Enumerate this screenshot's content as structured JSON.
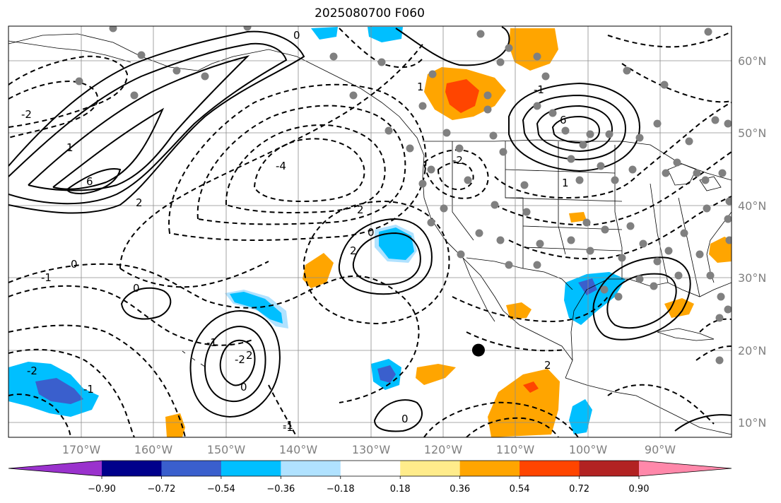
{
  "title": "2025080700 F060",
  "map": {
    "lon_range": [
      -180,
      -80
    ],
    "lat_range": [
      8,
      65
    ],
    "gridlines": true,
    "lat_labels": [
      "10°N",
      "20°N",
      "30°N",
      "40°N",
      "50°N",
      "60°N"
    ],
    "lon_labels": [
      "170°W",
      "160°W",
      "150°W",
      "140°W",
      "130°W",
      "120°W",
      "110°W",
      "100°W",
      "90°W"
    ],
    "contour_labels": [
      "0",
      "-1",
      "-2",
      "-4",
      "6",
      "2",
      "1",
      "0",
      "-1",
      "-2",
      "2",
      "6",
      "-2",
      "-1",
      "0",
      "1",
      "0",
      "2",
      "1",
      "-1",
      "2",
      "0",
      "-1",
      "0",
      "-1",
      "-2",
      "2"
    ],
    "marker": {
      "lon": -115,
      "lat": 20
    }
  },
  "colorbar": {
    "colors": [
      "#9a32cd",
      "#00008b",
      "#3a5fcd",
      "#00bfff",
      "#b0e2ff",
      "#ffffff",
      "#ffec8b",
      "#ffa500",
      "#ff4500",
      "#b22222",
      "#ff88aa"
    ],
    "tick_labels": [
      "−0.90",
      "−0.72",
      "−0.54",
      "−0.36",
      "−0.18",
      "0.18",
      "0.36",
      "0.54",
      "0.72",
      "0.90"
    ]
  }
}
